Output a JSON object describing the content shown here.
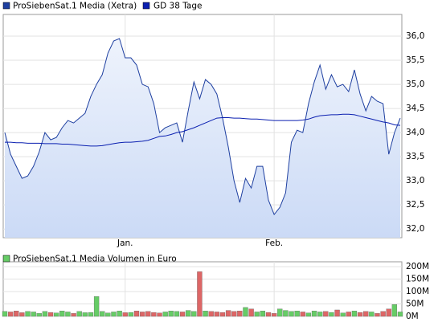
{
  "chart_data": [
    {
      "type": "line",
      "categories": [
        null,
        null,
        null,
        null,
        null,
        null,
        null,
        null,
        null,
        null,
        null,
        null,
        null,
        null,
        null,
        null,
        null,
        null,
        null,
        null,
        null,
        "Jan.",
        null,
        null,
        null,
        null,
        null,
        null,
        null,
        null,
        null,
        null,
        null,
        null,
        null,
        null,
        null,
        null,
        null,
        null,
        null,
        null,
        null,
        null,
        null,
        null,
        null,
        "Feb.",
        null,
        null,
        null,
        null,
        null,
        null,
        null,
        null,
        null,
        null,
        null,
        null,
        null,
        null,
        null,
        null,
        null,
        null,
        null,
        null,
        null,
        null
      ],
      "series": [
        {
          "name": "ProSiebenSat.1 Media (Xetra)",
          "color": "#1e3fa0",
          "fill": true,
          "values": [
            34.0,
            33.55,
            33.3,
            33.05,
            33.1,
            33.3,
            33.6,
            34.0,
            33.85,
            33.9,
            34.1,
            34.25,
            34.2,
            34.3,
            34.4,
            34.75,
            35.0,
            35.2,
            35.65,
            35.9,
            35.95,
            35.55,
            35.55,
            35.4,
            35.0,
            34.95,
            34.6,
            34.0,
            34.1,
            34.15,
            34.2,
            33.8,
            34.45,
            35.05,
            34.7,
            35.1,
            35.0,
            34.8,
            34.3,
            33.7,
            33.0,
            32.55,
            33.05,
            32.85,
            33.3,
            33.3,
            32.6,
            32.3,
            32.45,
            32.75,
            33.8,
            34.05,
            34.0,
            34.6,
            35.05,
            35.4,
            34.9,
            35.2,
            34.95,
            35.0,
            34.85,
            35.3,
            34.8,
            34.45,
            34.75,
            34.65,
            34.6,
            33.55,
            34.0,
            34.3
          ]
        },
        {
          "name": "GD 38 Tage",
          "color": "#0a1fb0",
          "fill": false,
          "values": [
            33.8,
            33.8,
            33.79,
            33.79,
            33.78,
            33.78,
            33.78,
            33.77,
            33.77,
            33.77,
            33.76,
            33.76,
            33.75,
            33.74,
            33.73,
            33.72,
            33.72,
            33.73,
            33.75,
            33.77,
            33.79,
            33.8,
            33.8,
            33.81,
            33.82,
            33.84,
            33.88,
            33.92,
            33.93,
            33.96,
            34.0,
            34.02,
            34.06,
            34.1,
            34.15,
            34.2,
            34.25,
            34.3,
            34.31,
            34.31,
            34.3,
            34.3,
            34.29,
            34.28,
            34.28,
            34.27,
            34.26,
            34.25,
            34.25,
            34.25,
            34.25,
            34.25,
            34.26,
            34.28,
            34.32,
            34.35,
            34.36,
            34.37,
            34.37,
            34.38,
            34.38,
            34.37,
            34.34,
            34.31,
            34.28,
            34.25,
            34.22,
            34.2,
            34.16,
            34.15
          ]
        }
      ],
      "ylim": [
        31.82,
        36.45
      ],
      "yticks": [
        {
          "value": 32.0,
          "label": "32,0"
        },
        {
          "value": 32.5,
          "label": "32,5"
        },
        {
          "value": 33.0,
          "label": "33,0"
        },
        {
          "value": 33.5,
          "label": "33,5"
        },
        {
          "value": 34.0,
          "label": "34,0"
        },
        {
          "value": 34.5,
          "label": "34,5"
        },
        {
          "value": 35.0,
          "label": "35,0"
        },
        {
          "value": 35.5,
          "label": "35,5"
        },
        {
          "value": 36.0,
          "label": "36,0"
        }
      ],
      "grid": true
    },
    {
      "type": "bar",
      "series": [
        {
          "name": "ProSiebenSat.1 Media Volumen in Euro",
          "color": "#66cc66",
          "values": [
            20,
            18,
            22,
            15,
            20,
            18,
            12,
            20,
            16,
            14,
            22,
            18,
            12,
            20,
            15,
            16,
            80,
            20,
            14,
            18,
            22,
            15,
            16,
            22,
            18,
            20,
            16,
            14,
            18,
            22,
            20,
            18,
            24,
            20,
            180,
            22,
            20,
            18,
            16,
            24,
            20,
            22,
            36,
            30,
            18,
            22,
            16,
            12,
            30,
            24,
            20,
            22,
            18,
            14,
            22,
            18,
            20,
            16,
            26,
            14,
            18,
            22,
            16,
            20,
            18,
            12,
            20,
            30,
            48,
            18
          ]
        }
      ],
      "up_color": "#66cc66",
      "down_color": "#dd6666",
      "ylim": [
        0,
        220
      ],
      "yticks": [
        {
          "value": 0,
          "label": "0M"
        },
        {
          "value": 50,
          "label": "50M"
        },
        {
          "value": 100,
          "label": "100M"
        },
        {
          "value": 150,
          "label": "150M"
        },
        {
          "value": 200,
          "label": "200M"
        }
      ],
      "grid": true
    }
  ]
}
